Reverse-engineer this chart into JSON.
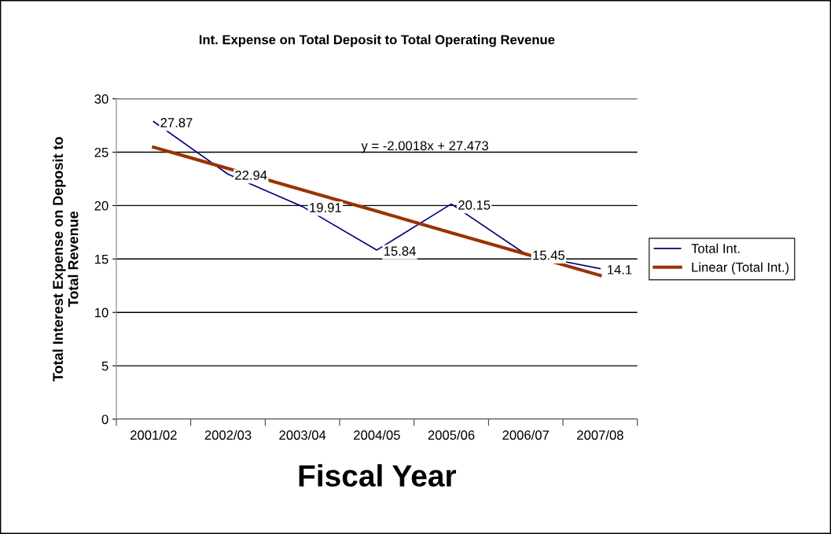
{
  "chart_data": {
    "type": "line",
    "title": "Int. Expense on Total Deposit to Total Operating Revenue",
    "xlabel": "Fiscal Year",
    "ylabel": "Total Interest Expense on Deposit to\nTotal Revenue",
    "categories": [
      "2001/02",
      "2002/03",
      "2003/04",
      "2004/05",
      "2005/06",
      "2006/07",
      "2007/08"
    ],
    "series": [
      {
        "name": "Total Int.",
        "color": "#000080",
        "values": [
          27.87,
          22.94,
          19.91,
          15.84,
          20.15,
          15.45,
          14.1
        ],
        "data_labels": true
      },
      {
        "name": "Linear (Total Int.)",
        "color": "#993300",
        "values": [
          25.47,
          23.47,
          21.47,
          19.47,
          17.46,
          15.46,
          13.46
        ]
      }
    ],
    "annotations": [
      "y = -2.0018x + 27.473"
    ],
    "ylim": [
      0,
      30
    ],
    "yticks": [
      0,
      5,
      10,
      15,
      20,
      25,
      30
    ],
    "grid": "y",
    "legend": "right",
    "marker": "none",
    "line_style": "solid"
  }
}
